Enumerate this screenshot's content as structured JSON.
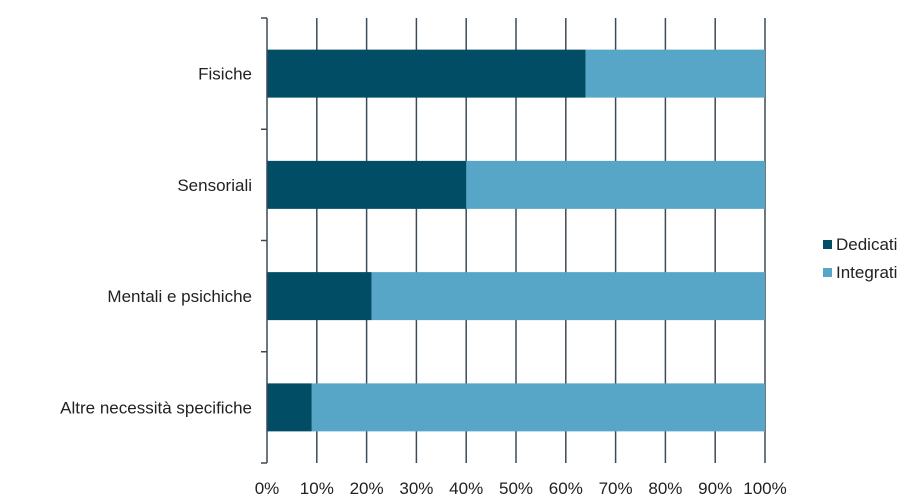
{
  "chart_data": {
    "type": "bar",
    "orientation": "horizontal",
    "stacked": "percent",
    "categories": [
      "Fisiche",
      "Sensoriali",
      "Mentali e psichiche",
      "Altre necessità specifiche"
    ],
    "series": [
      {
        "name": "Dedicati",
        "values": [
          64,
          40,
          21,
          9
        ],
        "color": "#024d66"
      },
      {
        "name": "Integrati",
        "values": [
          36,
          60,
          79,
          91
        ],
        "color": "#57a6c8"
      }
    ],
    "xlim": [
      0,
      100
    ],
    "x_ticks": [
      "0%",
      "10%",
      "20%",
      "30%",
      "40%",
      "50%",
      "60%",
      "70%",
      "80%",
      "90%",
      "100%"
    ],
    "grid": "vertical",
    "legend_position": "right",
    "title": "",
    "xlabel": "",
    "ylabel": ""
  }
}
